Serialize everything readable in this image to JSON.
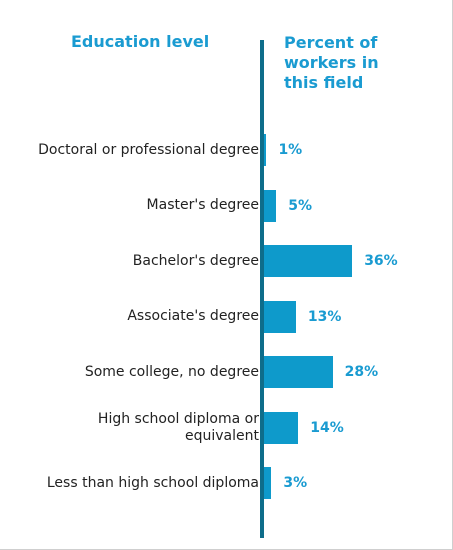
{
  "colors": {
    "accent": "#1a9bd1",
    "bar": "#0e9acb",
    "axis": "#0e6d8a",
    "text": "#222222"
  },
  "header": {
    "left": "Education level",
    "right": "Percent of\nworkers in\nthis field"
  },
  "chart_data": {
    "type": "bar",
    "orientation": "horizontal",
    "xlabel": "Percent of workers in this field",
    "ylabel": "Education level",
    "xlim": [
      0,
      40
    ],
    "grid": false,
    "legend": "none",
    "categories": [
      "Doctoral or professional degree",
      "Master's degree",
      "Bachelor's degree",
      "Associate's degree",
      "Some college, no degree",
      "High school diploma or\nequivalent",
      "Less than high school diploma"
    ],
    "values": [
      1,
      5,
      36,
      13,
      28,
      14,
      3
    ],
    "value_labels": [
      "1%",
      "5%",
      "36%",
      "13%",
      "28%",
      "14%",
      "3%"
    ]
  }
}
